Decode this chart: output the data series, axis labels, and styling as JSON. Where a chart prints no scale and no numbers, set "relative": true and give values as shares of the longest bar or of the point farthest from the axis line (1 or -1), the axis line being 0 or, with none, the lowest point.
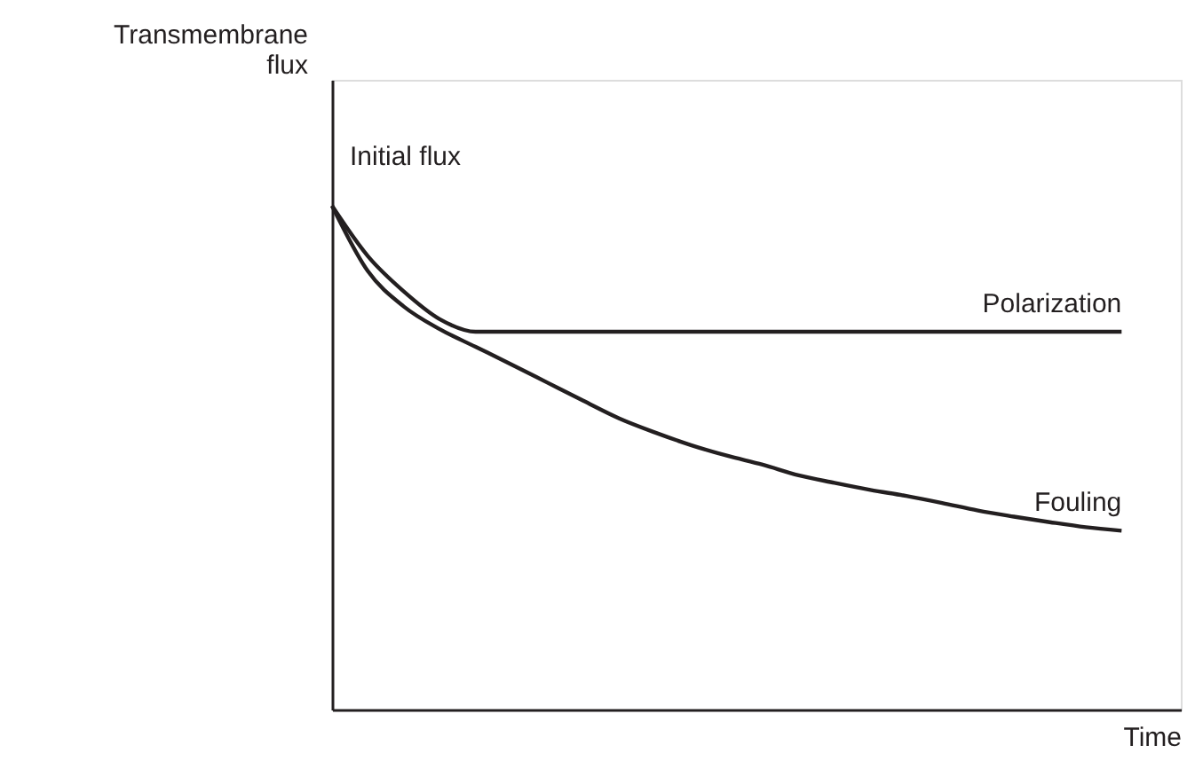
{
  "chart_data": {
    "type": "line",
    "relative": true,
    "xlabel": "Time",
    "ylabel": "Transmembrane flux",
    "categories": [
      null,
      null,
      null,
      null,
      null,
      null,
      null,
      null,
      null,
      null,
      null,
      null,
      null,
      null,
      null,
      null,
      null,
      null,
      null,
      null,
      null,
      null,
      null
    ],
    "series": [
      {
        "name": "Polarization",
        "color": "#231f20",
        "values": [
          1.0,
          0.9,
          0.83,
          0.775,
          0.75,
          0.75,
          0.75,
          0.75,
          0.75,
          0.75,
          0.75,
          0.75,
          0.75,
          0.75,
          0.75,
          0.75,
          0.75,
          0.75,
          0.75,
          0.75,
          0.75,
          0.75,
          0.75
        ]
      },
      {
        "name": "Fouling",
        "color": "#231f20",
        "values": [
          1.0,
          0.87,
          0.8,
          0.755,
          0.72,
          0.685,
          0.649,
          0.613,
          0.578,
          0.55,
          0.525,
          0.504,
          0.486,
          0.465,
          0.45,
          0.436,
          0.424,
          0.41,
          0.395,
          0.383,
          0.372,
          0.362,
          0.355
        ]
      }
    ],
    "annotations": [
      "Initial flux"
    ],
    "marker": "none",
    "line_style": "solid",
    "grid": false
  }
}
